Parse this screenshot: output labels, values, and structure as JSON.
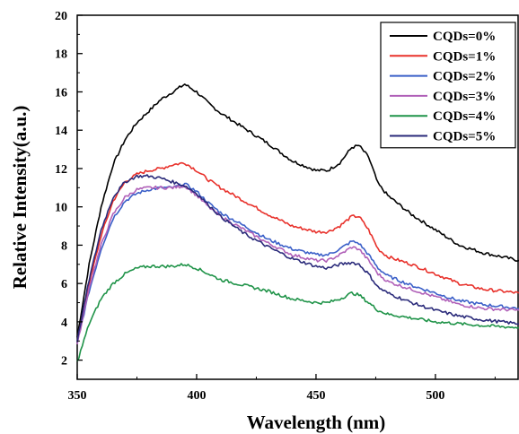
{
  "chart_data": {
    "type": "line",
    "title": "",
    "xlabel": "Wavelength (nm)",
    "ylabel": "Relative Intensity(a.u.)",
    "xlim": [
      350,
      535
    ],
    "ylim": [
      1,
      20
    ],
    "xticks": [
      350,
      400,
      450,
      500
    ],
    "yticks": [
      2,
      4,
      6,
      8,
      10,
      12,
      14,
      16,
      18,
      20
    ],
    "grid": false,
    "legend_position": "top-right",
    "series": [
      {
        "name": "CQDs=0%",
        "color": "#000000",
        "x": [
          350,
          355,
          360,
          365,
          370,
          375,
          380,
          385,
          390,
          395,
          400,
          405,
          410,
          420,
          430,
          440,
          450,
          455,
          460,
          465,
          468,
          472,
          476,
          480,
          490,
          500,
          510,
          520,
          535
        ],
        "y": [
          3.2,
          7.0,
          10.0,
          12.2,
          13.5,
          14.4,
          15.0,
          15.6,
          16.0,
          16.4,
          16.0,
          15.4,
          14.9,
          14.1,
          13.3,
          12.4,
          11.9,
          11.9,
          12.3,
          13.1,
          13.2,
          12.6,
          11.2,
          10.6,
          9.6,
          8.8,
          8.0,
          7.6,
          7.2
        ]
      },
      {
        "name": "CQDs=1%",
        "color": "#e8302a",
        "x": [
          350,
          355,
          360,
          365,
          370,
          375,
          380,
          385,
          390,
          395,
          400,
          405,
          410,
          420,
          430,
          440,
          450,
          455,
          460,
          465,
          468,
          472,
          476,
          480,
          490,
          500,
          510,
          520,
          535
        ],
        "y": [
          3.0,
          6.0,
          8.5,
          10.3,
          11.3,
          11.7,
          11.9,
          12.0,
          12.2,
          12.3,
          11.9,
          11.4,
          11.0,
          10.3,
          9.6,
          9.0,
          8.7,
          8.7,
          9.0,
          9.5,
          9.5,
          8.8,
          7.8,
          7.4,
          7.0,
          6.5,
          6.0,
          5.7,
          5.5
        ]
      },
      {
        "name": "CQDs=2%",
        "color": "#3a5fc8",
        "x": [
          350,
          355,
          360,
          365,
          370,
          375,
          380,
          385,
          390,
          395,
          400,
          405,
          410,
          420,
          430,
          440,
          450,
          455,
          460,
          465,
          468,
          472,
          476,
          480,
          490,
          500,
          510,
          520,
          535
        ],
        "y": [
          2.9,
          5.6,
          7.8,
          9.4,
          10.3,
          10.7,
          10.9,
          11.0,
          11.0,
          11.2,
          10.8,
          10.2,
          9.7,
          9.0,
          8.3,
          7.8,
          7.5,
          7.5,
          7.8,
          8.2,
          8.1,
          7.5,
          6.8,
          6.4,
          5.9,
          5.5,
          5.1,
          4.9,
          4.7
        ]
      },
      {
        "name": "CQDs=3%",
        "color": "#b060b8",
        "x": [
          350,
          355,
          360,
          365,
          370,
          375,
          380,
          385,
          390,
          395,
          400,
          405,
          410,
          420,
          430,
          440,
          450,
          455,
          460,
          465,
          468,
          472,
          476,
          480,
          490,
          500,
          510,
          520,
          535
        ],
        "y": [
          2.8,
          5.8,
          8.0,
          9.6,
          10.5,
          10.9,
          11.0,
          11.0,
          11.0,
          11.1,
          10.6,
          10.0,
          9.5,
          8.8,
          8.1,
          7.5,
          7.2,
          7.2,
          7.5,
          7.9,
          7.8,
          7.2,
          6.5,
          6.1,
          5.7,
          5.3,
          4.9,
          4.7,
          4.6
        ]
      },
      {
        "name": "CQDs=4%",
        "color": "#1f9348",
        "x": [
          350,
          355,
          360,
          365,
          370,
          375,
          380,
          385,
          390,
          395,
          400,
          405,
          410,
          420,
          430,
          440,
          450,
          455,
          460,
          465,
          468,
          472,
          476,
          480,
          490,
          500,
          510,
          520,
          535
        ],
        "y": [
          1.9,
          3.9,
          5.2,
          6.0,
          6.5,
          6.8,
          6.9,
          6.9,
          6.9,
          7.0,
          6.8,
          6.5,
          6.2,
          5.9,
          5.6,
          5.2,
          5.0,
          5.0,
          5.2,
          5.5,
          5.4,
          5.0,
          4.6,
          4.4,
          4.2,
          4.0,
          3.9,
          3.8,
          3.7
        ]
      },
      {
        "name": "CQDs=5%",
        "color": "#2a2a7a",
        "x": [
          350,
          355,
          360,
          365,
          370,
          375,
          380,
          385,
          390,
          395,
          400,
          405,
          410,
          420,
          430,
          440,
          450,
          455,
          460,
          465,
          468,
          472,
          476,
          480,
          490,
          500,
          510,
          520,
          535
        ],
        "y": [
          3.0,
          6.2,
          8.8,
          10.5,
          11.3,
          11.6,
          11.6,
          11.5,
          11.3,
          11.1,
          10.7,
          10.1,
          9.5,
          8.6,
          7.9,
          7.3,
          6.9,
          6.8,
          7.0,
          7.1,
          7.0,
          6.5,
          5.8,
          5.5,
          5.0,
          4.6,
          4.3,
          4.1,
          3.9
        ]
      }
    ]
  }
}
